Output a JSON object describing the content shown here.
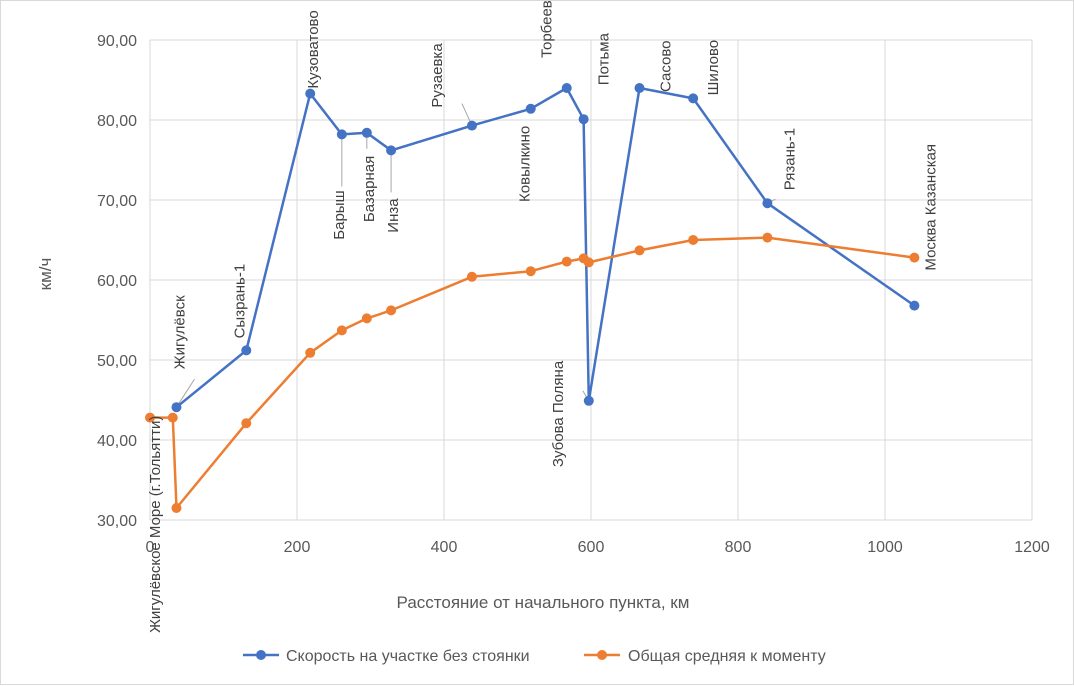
{
  "chart_data": {
    "type": "line",
    "title": "",
    "xlabel": "Расстояние от начального пункта, км",
    "ylabel": "км/ч",
    "xlim": [
      0,
      1200
    ],
    "ylim": [
      30,
      90
    ],
    "xticks": [
      "0",
      "200",
      "400",
      "600",
      "800",
      "1000",
      "1200"
    ],
    "yticks": [
      "30,00",
      "40,00",
      "50,00",
      "60,00",
      "70,00",
      "80,00",
      "90,00"
    ],
    "grid": true,
    "legend_position": "bottom",
    "colors": {
      "speed": "#4472c4",
      "average": "#ed7d31",
      "grid": "#d9d9d9"
    },
    "series": [
      {
        "name": "Скорость на участке без стоянки",
        "x": [
          36,
          131,
          218,
          261,
          295,
          328,
          438,
          518,
          567,
          590,
          597,
          666,
          739,
          840,
          1040
        ],
        "y": [
          44.1,
          51.2,
          83.3,
          78.2,
          78.4,
          76.2,
          79.3,
          81.4,
          84.0,
          80.1,
          44.9,
          84.0,
          82.7,
          69.6,
          56.8
        ]
      },
      {
        "name": "Общая средняя к моменту",
        "x": [
          0,
          31,
          36,
          131,
          218,
          261,
          295,
          328,
          438,
          518,
          567,
          590,
          597,
          666,
          739,
          840,
          1040
        ],
        "y": [
          42.8,
          42.8,
          31.5,
          42.1,
          50.9,
          53.7,
          55.2,
          56.2,
          60.4,
          61.1,
          62.3,
          62.7,
          62.2,
          63.7,
          65.0,
          65.3,
          62.8
        ]
      }
    ],
    "annotations": [
      "Жигулёвское Море (г.Тольятти)",
      "Жигулёвск",
      "Сызрань-1",
      "Кузоватово",
      "Барыш",
      "Базарная",
      "Инза",
      "Рузаевка",
      "Ковылкино",
      "Торбеево",
      "Потьма",
      "Зубова Поляна",
      "Сасово",
      "Шилово",
      "Рязань-1",
      "Москва Казанская"
    ]
  }
}
